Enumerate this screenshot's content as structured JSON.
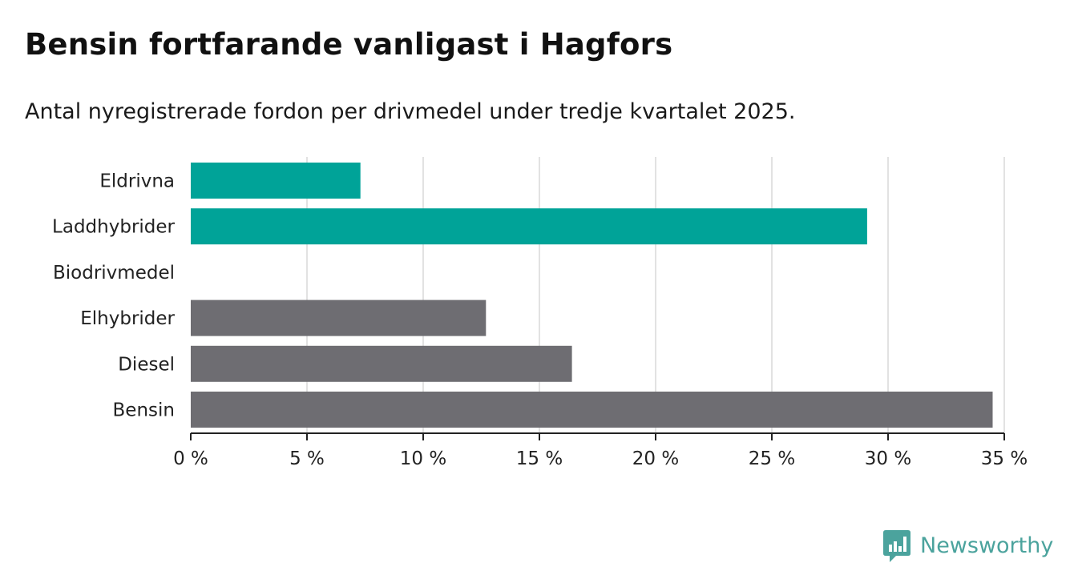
{
  "title": "Bensin fortfarande vanligast i Hagfors",
  "subtitle": "Antal nyregistrerade fordon per drivmedel under tredje kvartalet 2025.",
  "brand": {
    "name": "Newsworthy",
    "icon": "newsworthy-logo-icon",
    "color": "#4ba39d"
  },
  "colors": {
    "highlight": "#00a398",
    "neutral": "#6e6d72",
    "grid": "#d9d9d9",
    "axis": "#222222"
  },
  "chart_data": {
    "type": "bar",
    "orientation": "horizontal",
    "title": "Bensin fortfarande vanligast i Hagfors",
    "subtitle": "Antal nyregistrerade fordon per drivmedel under tredje kvartalet 2025.",
    "xlabel": "",
    "ylabel": "",
    "xlim": [
      0,
      35
    ],
    "xticks": [
      0,
      5,
      10,
      15,
      20,
      25,
      30,
      35
    ],
    "tick_labels": [
      "0 %",
      "5 %",
      "10 %",
      "15 %",
      "20 %",
      "25 %",
      "30 %",
      "35 %"
    ],
    "grid": true,
    "categories": [
      "Eldrivna",
      "Laddhybrider",
      "Biodrivmedel",
      "Elhybrider",
      "Diesel",
      "Bensin"
    ],
    "values": [
      7.3,
      29.1,
      0,
      12.7,
      16.4,
      34.5
    ],
    "bar_colors": [
      "#00a398",
      "#00a398",
      "#00a398",
      "#6e6d72",
      "#6e6d72",
      "#6e6d72"
    ]
  }
}
